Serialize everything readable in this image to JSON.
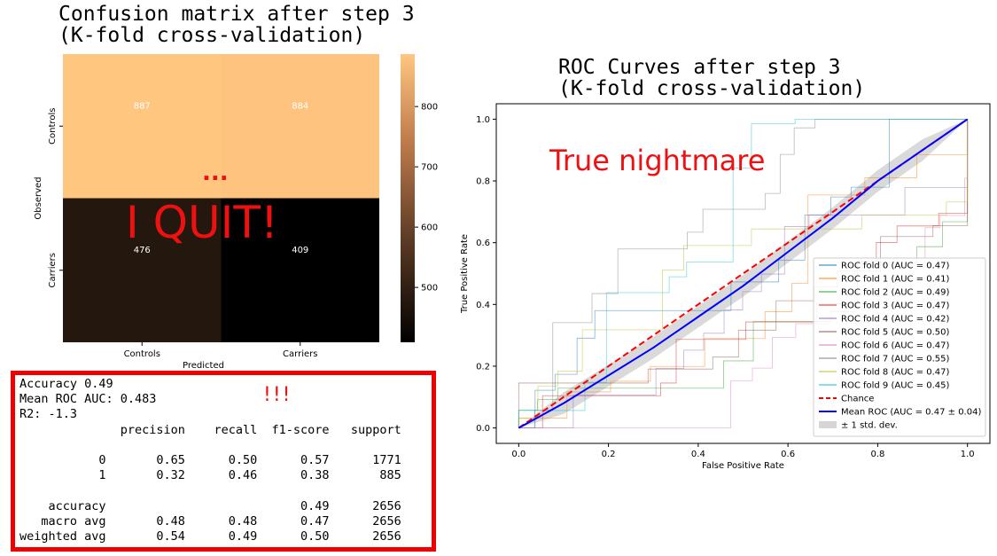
{
  "confusion": {
    "title": "Confusion matrix after step 3\n(K-fold cross-validation)",
    "xlabel": "Predicted",
    "ylabel": "Observed",
    "categories": [
      "Controls",
      "Carriers"
    ],
    "matrix": [
      [
        887,
        884
      ],
      [
        476,
        409
      ]
    ],
    "colorbar_ticks": [
      500,
      600,
      700,
      800
    ],
    "vmin": 409,
    "vmax": 887
  },
  "annotations": {
    "dots": "...",
    "quit": "I QUIT!",
    "bangs": "!!!",
    "nightmare": "True nightmare"
  },
  "report": {
    "text": "Accuracy 0.49\nMean ROC AUC: 0.483\nR2: -1.3\n              precision    recall  f1-score   support\n\n           0       0.65      0.50      0.57      1771\n           1       0.32      0.46      0.38       885\n\n    accuracy                           0.49      2656\n   macro avg       0.48      0.48      0.47      2656\nweighted avg       0.54      0.49      0.50      2656"
  },
  "chart_data": [
    {
      "type": "heatmap",
      "title": "Confusion matrix after step 3 (K-fold cross-validation)",
      "xlabel": "Predicted",
      "ylabel": "Observed",
      "x": [
        "Controls",
        "Carriers"
      ],
      "y": [
        "Controls",
        "Carriers"
      ],
      "values": [
        [
          887,
          884
        ],
        [
          476,
          409
        ]
      ],
      "colorbar": {
        "ticks": [
          500,
          600,
          700,
          800
        ],
        "range": [
          409,
          887
        ],
        "colormap": "copper"
      }
    },
    {
      "type": "line",
      "title": "ROC Curves after step 3 (K-fold cross-validation)",
      "xlabel": "False Positive Rate",
      "ylabel": "True Positive Rate",
      "xlim": [
        -0.05,
        1.05
      ],
      "ylim": [
        -0.05,
        1.05
      ],
      "xticks": [
        "0.0",
        "0.2",
        "0.4",
        "0.6",
        "0.8",
        "1.0"
      ],
      "yticks": [
        "0.0",
        "0.2",
        "0.4",
        "0.6",
        "0.8",
        "1.0"
      ],
      "legend_position": "lower-right",
      "series": [
        {
          "name": "ROC fold 0 (AUC = 0.47)",
          "color": "#1f77b4",
          "auc": 0.47
        },
        {
          "name": "ROC fold 1 (AUC = 0.41)",
          "color": "#ff7f0e",
          "auc": 0.41
        },
        {
          "name": "ROC fold 2 (AUC = 0.49)",
          "color": "#2ca02c",
          "auc": 0.49
        },
        {
          "name": "ROC fold 3 (AUC = 0.47)",
          "color": "#d62728",
          "auc": 0.47
        },
        {
          "name": "ROC fold 4 (AUC = 0.42)",
          "color": "#9467bd",
          "auc": 0.42
        },
        {
          "name": "ROC fold 5 (AUC = 0.50)",
          "color": "#8c564b",
          "auc": 0.5
        },
        {
          "name": "ROC fold 6 (AUC = 0.47)",
          "color": "#e377c2",
          "auc": 0.47
        },
        {
          "name": "ROC fold 7 (AUC = 0.55)",
          "color": "#7f7f7f",
          "auc": 0.55
        },
        {
          "name": "ROC fold 8 (AUC = 0.47)",
          "color": "#bcbd22",
          "auc": 0.47
        },
        {
          "name": "ROC fold 9 (AUC = 0.45)",
          "color": "#17becf",
          "auc": 0.45
        }
      ],
      "chance": {
        "name": "Chance",
        "color": "#ff0000",
        "x": [
          0,
          1
        ],
        "y": [
          0,
          1
        ]
      },
      "mean": {
        "name": "Mean ROC (AUC = 0.47 ± 0.04)",
        "color": "#0000ff",
        "x": [
          0,
          0.1,
          0.2,
          0.3,
          0.4,
          0.5,
          0.6,
          0.7,
          0.8,
          0.9,
          1.0
        ],
        "y": [
          0,
          0.08,
          0.17,
          0.26,
          0.36,
          0.46,
          0.57,
          0.68,
          0.8,
          0.9,
          1.0
        ]
      },
      "std_band": {
        "name": "± 1 std. dev.",
        "color": "#bbbbbb"
      }
    }
  ]
}
